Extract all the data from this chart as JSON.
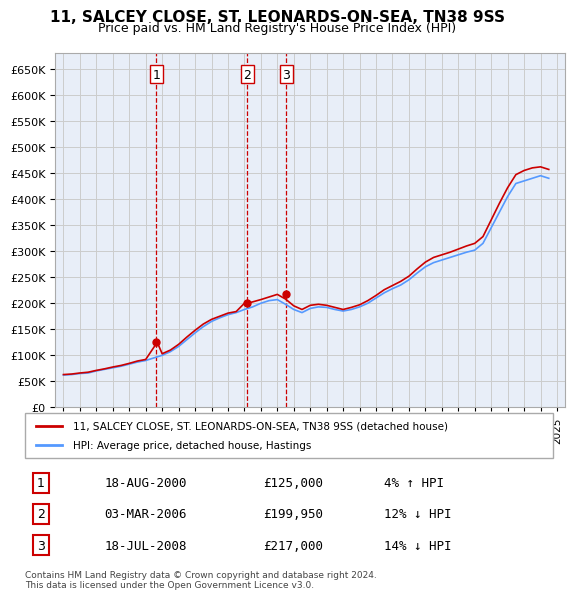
{
  "title": "11, SALCEY CLOSE, ST. LEONARDS-ON-SEA, TN38 9SS",
  "subtitle": "Price paid vs. HM Land Registry's House Price Index (HPI)",
  "ylabel": "",
  "ylim": [
    0,
    680000
  ],
  "yticks": [
    0,
    50000,
    100000,
    150000,
    200000,
    250000,
    300000,
    350000,
    400000,
    450000,
    500000,
    550000,
    600000,
    650000
  ],
  "background_color": "#ffffff",
  "grid_color": "#cccccc",
  "hpi_color": "#5599ff",
  "price_color": "#cc0000",
  "sale_marker_color": "#cc0000",
  "transactions": [
    {
      "num": 1,
      "date": "18-AUG-2000",
      "price": 125000,
      "pct": "4%",
      "dir": "↑"
    },
    {
      "num": 2,
      "date": "03-MAR-2006",
      "price": 199950,
      "pct": "12%",
      "dir": "↓"
    },
    {
      "num": 3,
      "date": "18-JUL-2008",
      "price": 217000,
      "pct": "14%",
      "dir": "↓"
    }
  ],
  "legend_line1": "11, SALCEY CLOSE, ST. LEONARDS-ON-SEA, TN38 9SS (detached house)",
  "legend_line2": "HPI: Average price, detached house, Hastings",
  "footnote": "Contains HM Land Registry data © Crown copyright and database right 2024.\nThis data is licensed under the Open Government Licence v3.0.",
  "hpi_years": [
    1995,
    1995.5,
    1996,
    1996.5,
    1997,
    1997.5,
    1998,
    1998.5,
    1999,
    1999.5,
    2000,
    2000.5,
    2001,
    2001.5,
    2002,
    2002.5,
    2003,
    2003.5,
    2004,
    2004.5,
    2005,
    2005.5,
    2006,
    2006.5,
    2007,
    2007.5,
    2008,
    2008.5,
    2009,
    2009.5,
    2010,
    2010.5,
    2011,
    2011.5,
    2012,
    2012.5,
    2013,
    2013.5,
    2014,
    2014.5,
    2015,
    2015.5,
    2016,
    2016.5,
    2017,
    2017.5,
    2018,
    2018.5,
    2019,
    2019.5,
    2020,
    2020.5,
    2021,
    2021.5,
    2022,
    2022.5,
    2023,
    2023.5,
    2024,
    2024.5
  ],
  "hpi_values": [
    62000,
    63000,
    65000,
    66000,
    70000,
    73000,
    76000,
    79000,
    83000,
    87000,
    90000,
    95000,
    100000,
    107000,
    117000,
    130000,
    143000,
    155000,
    165000,
    172000,
    178000,
    182000,
    188000,
    193000,
    200000,
    205000,
    207000,
    198000,
    188000,
    182000,
    190000,
    193000,
    192000,
    188000,
    185000,
    188000,
    193000,
    200000,
    210000,
    220000,
    228000,
    235000,
    245000,
    258000,
    270000,
    278000,
    283000,
    288000,
    293000,
    298000,
    302000,
    315000,
    345000,
    375000,
    405000,
    430000,
    435000,
    440000,
    445000,
    440000
  ],
  "price_years": [
    1995,
    1995.5,
    1996,
    1996.5,
    1997,
    1997.5,
    1998,
    1998.5,
    1999,
    1999.5,
    2000,
    2000.7,
    2001,
    2001.5,
    2002,
    2002.5,
    2003,
    2003.5,
    2004,
    2004.5,
    2005,
    2005.5,
    2006,
    2006.2,
    2007,
    2007.5,
    2008,
    2008.5,
    2009,
    2009.5,
    2010,
    2010.5,
    2011,
    2011.5,
    2012,
    2012.5,
    2013,
    2013.5,
    2014,
    2014.5,
    2015,
    2015.5,
    2016,
    2016.5,
    2017,
    2017.5,
    2018,
    2018.5,
    2019,
    2019.5,
    2020,
    2020.5,
    2021,
    2021.5,
    2022,
    2022.5,
    2023,
    2023.5,
    2024,
    2024.5
  ],
  "price_values": [
    63000,
    64000,
    66000,
    67500,
    71000,
    74000,
    77500,
    80500,
    84500,
    89000,
    92000,
    125000,
    103000,
    110000,
    121000,
    135000,
    148000,
    160000,
    169000,
    175000,
    181000,
    184000,
    199950,
    199950,
    207000,
    212000,
    217000,
    208000,
    195000,
    188000,
    196000,
    198000,
    196000,
    192000,
    188000,
    192000,
    197000,
    205000,
    215000,
    226000,
    234000,
    242000,
    252000,
    266000,
    279000,
    288000,
    293000,
    298000,
    304000,
    310000,
    315000,
    328000,
    360000,
    392000,
    422000,
    447000,
    455000,
    460000,
    462000,
    457000
  ],
  "sale_points": [
    {
      "year": 2000.64,
      "price": 125000,
      "label": "1"
    },
    {
      "year": 2006.17,
      "price": 199950,
      "label": "2"
    },
    {
      "year": 2008.54,
      "price": 217000,
      "label": "3"
    }
  ],
  "vline_years": [
    2000.64,
    2006.17,
    2008.54
  ],
  "vline_labels": [
    "1",
    "2",
    "3"
  ],
  "xlim": [
    1994.5,
    2025.5
  ],
  "xtick_years": [
    1995,
    1996,
    1997,
    1998,
    1999,
    2000,
    2001,
    2002,
    2003,
    2004,
    2005,
    2006,
    2007,
    2008,
    2009,
    2010,
    2011,
    2012,
    2013,
    2014,
    2015,
    2016,
    2017,
    2018,
    2019,
    2020,
    2021,
    2022,
    2023,
    2024,
    2025
  ]
}
